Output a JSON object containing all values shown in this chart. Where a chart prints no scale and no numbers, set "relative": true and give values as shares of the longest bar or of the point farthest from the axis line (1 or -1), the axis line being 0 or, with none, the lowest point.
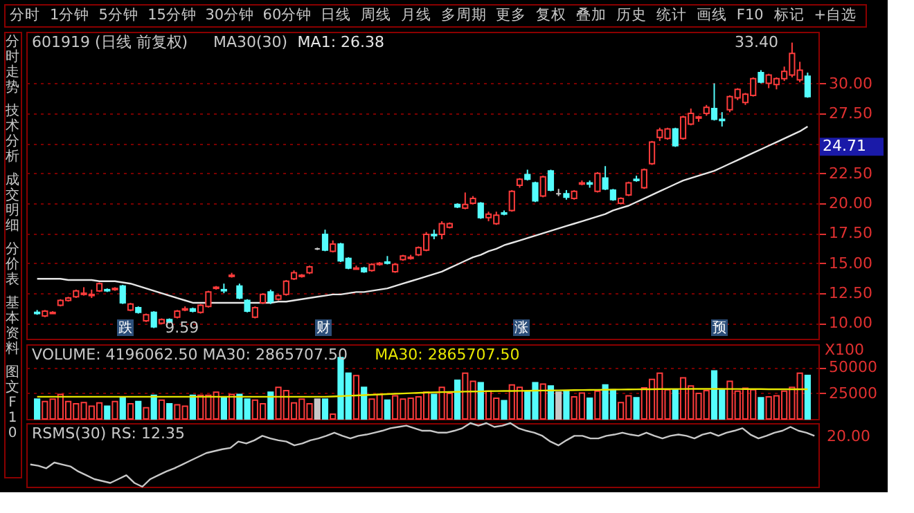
{
  "chart_data": [
    {
      "type": "candlestick",
      "title": "601919 (日线 前复权)",
      "subtitle": "MA30(30)",
      "categories": [
        null,
        null,
        null,
        null,
        null,
        null,
        null,
        null,
        null,
        null,
        null,
        null,
        null,
        null,
        null,
        null,
        null,
        null,
        null,
        null,
        null,
        null,
        null,
        null,
        null,
        null,
        null,
        null,
        null,
        null,
        null,
        null,
        null,
        null,
        null,
        null,
        null,
        null,
        null,
        null,
        null,
        null,
        null,
        null,
        null,
        null,
        null,
        null,
        null,
        null,
        null,
        null,
        null,
        null,
        null,
        null,
        null,
        null,
        null,
        null,
        null,
        null,
        null,
        null,
        null,
        null,
        null,
        null,
        null,
        null,
        null,
        null,
        null,
        null,
        null,
        null,
        null,
        null,
        null,
        null,
        null,
        null,
        null,
        null,
        null,
        null,
        null,
        null,
        null,
        null,
        null,
        null,
        null,
        null,
        null,
        null,
        null,
        null,
        null,
        null
      ],
      "ohlc": [
        [
          10.9,
          11.1,
          10.7,
          10.8
        ],
        [
          10.6,
          11.1,
          10.5,
          11.0
        ],
        [
          10.8,
          11.0,
          10.8,
          10.9
        ],
        [
          11.5,
          12.0,
          11.4,
          11.9
        ],
        [
          11.9,
          12.2,
          11.8,
          12.1
        ],
        [
          12.2,
          12.8,
          12.1,
          12.7
        ],
        [
          12.4,
          13.0,
          12.3,
          12.5
        ],
        [
          12.3,
          12.8,
          12.1,
          12.4
        ],
        [
          12.7,
          13.4,
          12.6,
          13.3
        ],
        [
          12.8,
          12.9,
          12.6,
          12.7
        ],
        [
          12.8,
          13.0,
          12.7,
          12.9
        ],
        [
          13.1,
          13.2,
          11.6,
          11.7
        ],
        [
          11.1,
          11.7,
          11.0,
          11.6
        ],
        [
          11.3,
          11.4,
          10.8,
          10.9
        ],
        [
          10.2,
          10.8,
          10.1,
          10.7
        ],
        [
          10.9,
          11.0,
          9.59,
          9.7
        ],
        [
          10.0,
          10.4,
          9.9,
          10.3
        ],
        [
          10.3,
          10.4,
          10.0,
          10.1
        ],
        [
          10.5,
          11.1,
          10.4,
          11.0
        ],
        [
          11.1,
          11.4,
          11.0,
          11.2
        ],
        [
          11.2,
          11.3,
          10.9,
          11.0
        ],
        [
          10.9,
          11.6,
          10.8,
          11.5
        ],
        [
          11.4,
          12.7,
          11.3,
          12.6
        ],
        [
          12.9,
          13.1,
          12.8,
          13.0
        ],
        [
          12.8,
          13.3,
          12.5,
          12.7
        ],
        [
          13.9,
          14.2,
          13.8,
          14.0
        ],
        [
          13.1,
          13.3,
          12.0,
          12.1
        ],
        [
          11.9,
          12.0,
          10.9,
          11.0
        ],
        [
          10.5,
          11.4,
          10.4,
          11.3
        ],
        [
          11.7,
          12.5,
          11.6,
          12.4
        ],
        [
          12.6,
          12.8,
          11.6,
          11.8
        ],
        [
          12.0,
          12.4,
          11.9,
          12.3
        ],
        [
          12.4,
          13.6,
          12.3,
          13.5
        ],
        [
          13.7,
          14.4,
          13.6,
          14.2
        ],
        [
          13.9,
          14.1,
          13.8,
          14.0
        ],
        [
          14.2,
          14.8,
          14.1,
          14.7
        ],
        [
          16.2,
          16.3,
          16.1,
          16.2
        ],
        [
          17.4,
          17.8,
          16.0,
          16.1
        ],
        [
          16.0,
          16.9,
          15.9,
          16.6
        ],
        [
          16.6,
          16.7,
          15.1,
          15.2
        ],
        [
          15.4,
          15.5,
          14.5,
          14.6
        ],
        [
          14.5,
          14.8,
          14.5,
          14.6
        ],
        [
          14.6,
          14.7,
          14.2,
          14.3
        ],
        [
          14.4,
          15.0,
          14.3,
          14.9
        ],
        [
          14.9,
          15.1,
          14.8,
          15.0
        ],
        [
          15.1,
          15.6,
          14.9,
          15.0
        ],
        [
          14.3,
          15.0,
          14.2,
          14.9
        ],
        [
          15.3,
          15.7,
          15.2,
          15.6
        ],
        [
          15.4,
          15.7,
          15.3,
          15.5
        ],
        [
          15.7,
          16.4,
          15.6,
          16.3
        ],
        [
          16.1,
          17.6,
          16.0,
          17.4
        ],
        [
          17.4,
          17.8,
          17.0,
          17.3
        ],
        [
          17.4,
          18.5,
          17.0,
          18.3
        ],
        [
          18.0,
          18.4,
          17.9,
          18.3
        ],
        [
          19.9,
          20.0,
          19.6,
          19.7
        ],
        [
          19.6,
          20.9,
          19.5,
          19.9
        ],
        [
          20.0,
          20.6,
          19.9,
          20.4
        ],
        [
          20.0,
          20.1,
          18.7,
          18.8
        ],
        [
          18.8,
          19.3,
          18.5,
          19.1
        ],
        [
          18.3,
          19.3,
          18.2,
          19.0
        ],
        [
          19.2,
          19.4,
          19.0,
          19.1
        ],
        [
          19.4,
          21.1,
          19.3,
          21.0
        ],
        [
          21.5,
          22.1,
          21.3,
          22.0
        ],
        [
          22.4,
          22.8,
          21.9,
          22.0
        ],
        [
          21.7,
          21.8,
          20.1,
          20.2
        ],
        [
          20.6,
          22.3,
          20.5,
          22.2
        ],
        [
          22.7,
          22.8,
          21.0,
          21.1
        ],
        [
          20.8,
          21.2,
          20.6,
          20.8
        ],
        [
          20.8,
          21.1,
          20.3,
          20.5
        ],
        [
          20.4,
          21.1,
          20.3,
          21.0
        ],
        [
          21.6,
          21.9,
          21.5,
          21.7
        ],
        [
          21.7,
          21.9,
          21.3,
          21.6
        ],
        [
          21.0,
          22.6,
          20.9,
          22.5
        ],
        [
          22.1,
          23.1,
          21.1,
          21.2
        ],
        [
          21.1,
          21.2,
          20.2,
          20.3
        ],
        [
          20.0,
          20.5,
          19.9,
          20.4
        ],
        [
          20.7,
          21.8,
          20.6,
          21.7
        ],
        [
          22.0,
          22.3,
          21.8,
          21.9
        ],
        [
          21.3,
          22.9,
          21.2,
          22.8
        ],
        [
          23.3,
          25.2,
          23.2,
          25.1
        ],
        [
          25.5,
          26.3,
          25.2,
          26.1
        ],
        [
          25.4,
          26.3,
          25.3,
          26.2
        ],
        [
          26.2,
          26.3,
          24.7,
          24.8
        ],
        [
          25.4,
          27.3,
          25.3,
          27.2
        ],
        [
          26.6,
          27.9,
          26.5,
          27.5
        ],
        [
          27.1,
          27.3,
          26.8,
          27.2
        ],
        [
          27.5,
          28.2,
          27.3,
          28.0
        ],
        [
          27.9,
          30.0,
          26.9,
          27.0
        ],
        [
          27.0,
          27.6,
          26.4,
          26.9
        ],
        [
          27.8,
          29.0,
          27.6,
          28.9
        ],
        [
          28.8,
          29.6,
          28.6,
          29.5
        ],
        [
          28.4,
          29.2,
          28.2,
          29.1
        ],
        [
          29.0,
          30.5,
          28.9,
          30.4
        ],
        [
          30.9,
          31.1,
          30.0,
          30.1
        ],
        [
          30.0,
          30.8,
          29.6,
          30.7
        ],
        [
          29.9,
          30.5,
          29.5,
          30.4
        ],
        [
          30.4,
          31.4,
          30.2,
          31.0
        ],
        [
          30.7,
          33.4,
          30.5,
          32.5
        ],
        [
          30.3,
          31.8,
          30.1,
          31.1
        ],
        [
          30.6,
          30.9,
          28.8,
          28.9
        ]
      ],
      "colors": [
        "#54fcfc",
        "#ff3c3c",
        "#ff3c3c",
        "#ff3c3c",
        "#ff3c3c",
        "#ff3c3c",
        "#ff3c3c",
        "#ff3c3c",
        "#ff3c3c",
        "#54fcfc",
        "#ff3c3c",
        "#54fcfc",
        "#ff3c3c",
        "#54fcfc",
        "#ff3c3c",
        "#54fcfc",
        "#ff3c3c",
        "#54fcfc",
        "#ff3c3c",
        "#ff3c3c",
        "#54fcfc",
        "#ff3c3c",
        "#ff3c3c",
        "#ff3c3c",
        "#54fcfc",
        "#ff3c3c",
        "#54fcfc",
        "#54fcfc",
        "#ff3c3c",
        "#ff3c3c",
        "#54fcfc",
        "#ff3c3c",
        "#ff3c3c",
        "#ff3c3c",
        "#ff3c3c",
        "#ff3c3c",
        "#c8c8c8",
        "#54fcfc",
        "#ff3c3c",
        "#54fcfc",
        "#54fcfc",
        "#ff3c3c",
        "#54fcfc",
        "#ff3c3c",
        "#ff3c3c",
        "#54fcfc",
        "#ff3c3c",
        "#ff3c3c",
        "#ff3c3c",
        "#ff3c3c",
        "#ff3c3c",
        "#54fcfc",
        "#ff3c3c",
        "#ff3c3c",
        "#54fcfc",
        "#ff3c3c",
        "#ff3c3c",
        "#54fcfc",
        "#ff3c3c",
        "#ff3c3c",
        "#54fcfc",
        "#ff3c3c",
        "#ff3c3c",
        "#54fcfc",
        "#54fcfc",
        "#ff3c3c",
        "#54fcfc",
        "#c8c8c8",
        "#54fcfc",
        "#ff3c3c",
        "#ff3c3c",
        "#54fcfc",
        "#ff3c3c",
        "#54fcfc",
        "#54fcfc",
        "#ff3c3c",
        "#ff3c3c",
        "#54fcfc",
        "#ff3c3c",
        "#ff3c3c",
        "#ff3c3c",
        "#ff3c3c",
        "#54fcfc",
        "#ff3c3c",
        "#ff3c3c",
        "#ff3c3c",
        "#ff3c3c",
        "#54fcfc",
        "#54fcfc",
        "#ff3c3c",
        "#ff3c3c",
        "#ff3c3c",
        "#ff3c3c",
        "#54fcfc",
        "#ff3c3c",
        "#ff3c3c",
        "#ff3c3c",
        "#ff3c3c",
        "#ff3c3c",
        "#54fcfc"
      ],
      "series": [
        {
          "type": "line",
          "name": "MA1: 26.38",
          "color": "#e6e6e6",
          "values": [
            13.7,
            13.7,
            13.7,
            13.7,
            13.6,
            13.6,
            13.6,
            13.6,
            13.5,
            13.5,
            13.5,
            13.4,
            13.3,
            13.1,
            12.9,
            12.7,
            12.5,
            12.3,
            12.1,
            11.9,
            11.7,
            11.7,
            11.7,
            11.7,
            11.7,
            11.7,
            11.7,
            11.7,
            11.7,
            11.7,
            11.7,
            11.8,
            11.8,
            11.9,
            12.0,
            12.1,
            12.2,
            12.3,
            12.4,
            12.4,
            12.5,
            12.6,
            12.6,
            12.7,
            12.8,
            12.9,
            13.1,
            13.3,
            13.5,
            13.7,
            13.9,
            14.1,
            14.3,
            14.6,
            14.9,
            15.2,
            15.5,
            15.7,
            16.0,
            16.2,
            16.5,
            16.7,
            16.9,
            17.1,
            17.3,
            17.5,
            17.7,
            17.9,
            18.1,
            18.3,
            18.5,
            18.7,
            18.9,
            19.1,
            19.4,
            19.6,
            19.8,
            20.1,
            20.4,
            20.7,
            21.0,
            21.3,
            21.6,
            21.9,
            22.1,
            22.3,
            22.5,
            22.7,
            23.0,
            23.3,
            23.6,
            23.9,
            24.2,
            24.5,
            24.8,
            25.1,
            25.4,
            25.7,
            26.0,
            26.4
          ]
        }
      ],
      "ylim": [
        8.7,
        34.3
      ],
      "yticks": [
        {
          "value": 10,
          "label": "10.00"
        },
        {
          "value": 12.5,
          "label": "12.50"
        },
        {
          "value": 15,
          "label": "15.00"
        },
        {
          "value": 17.5,
          "label": "17.50"
        },
        {
          "value": 20,
          "label": "20.00"
        },
        {
          "value": 22.5,
          "label": "22.50"
        },
        {
          "value": 25,
          "label": null
        },
        {
          "value": 27.5,
          "label": "27.50"
        },
        {
          "value": 30,
          "label": "30.00"
        }
      ],
      "grid": "y",
      "annotations": [
        "33.40",
        "9.59",
        "24.71",
        "跌",
        "财",
        "涨",
        "预"
      ]
    },
    {
      "type": "bar",
      "title": "VOLUME: 4196062.50  MA30: 2865707.50",
      "categories": [
        null,
        null,
        null,
        null,
        null,
        null,
        null,
        null,
        null,
        null,
        null,
        null,
        null,
        null,
        null,
        null,
        null,
        null,
        null,
        null,
        null,
        null,
        null,
        null,
        null,
        null,
        null,
        null,
        null,
        null,
        null,
        null,
        null,
        null,
        null,
        null,
        null,
        null,
        null,
        null,
        null,
        null,
        null,
        null,
        null,
        null,
        null,
        null,
        null,
        null,
        null,
        null,
        null,
        null,
        null,
        null,
        null,
        null,
        null,
        null,
        null,
        null,
        null,
        null,
        null,
        null,
        null,
        null,
        null,
        null,
        null,
        null,
        null,
        null,
        null,
        null,
        null,
        null,
        null,
        null,
        null,
        null,
        null,
        null,
        null,
        null,
        null,
        null,
        null,
        null,
        null,
        null,
        null,
        null,
        null,
        null,
        null,
        null,
        null,
        null
      ],
      "values": [
        19100,
        16800,
        19100,
        23700,
        16800,
        14600,
        15900,
        12300,
        15500,
        12300,
        16800,
        20000,
        14600,
        16800,
        10900,
        22800,
        18200,
        14600,
        13700,
        12300,
        22800,
        22800,
        22800,
        25900,
        20000,
        23700,
        23700,
        19100,
        18200,
        14600,
        25900,
        30500,
        27300,
        15500,
        19100,
        14600,
        19100,
        19100,
        4600,
        59200,
        44100,
        41900,
        30500,
        19100,
        23700,
        18200,
        22300,
        19100,
        20000,
        21400,
        25900,
        23700,
        30500,
        24600,
        37300,
        44100,
        36400,
        35000,
        26800,
        20000,
        17700,
        32800,
        30500,
        26800,
        35000,
        33700,
        31900,
        25900,
        26800,
        21400,
        25000,
        20000,
        26800,
        32800,
        28200,
        15900,
        22300,
        20500,
        30000,
        38200,
        44100,
        28200,
        28200,
        39600,
        31900,
        24600,
        27300,
        46400,
        28200,
        36400,
        26800,
        29600,
        28200,
        20500,
        21400,
        22300,
        26800,
        30500,
        44100,
        41960.625
      ],
      "colors": [
        "#54fcfc",
        "#ff3c3c",
        "#ff3c3c",
        "#ff3c3c",
        "#ff3c3c",
        "#ff3c3c",
        "#ff3c3c",
        "#ff3c3c",
        "#ff3c3c",
        "#54fcfc",
        "#ff3c3c",
        "#54fcfc",
        "#ff3c3c",
        "#54fcfc",
        "#ff3c3c",
        "#54fcfc",
        "#ff3c3c",
        "#54fcfc",
        "#ff3c3c",
        "#ff3c3c",
        "#54fcfc",
        "#ff3c3c",
        "#ff3c3c",
        "#ff3c3c",
        "#54fcfc",
        "#ff3c3c",
        "#54fcfc",
        "#54fcfc",
        "#ff3c3c",
        "#ff3c3c",
        "#54fcfc",
        "#ff3c3c",
        "#ff3c3c",
        "#ff3c3c",
        "#ff3c3c",
        "#ff3c3c",
        "#c8c8c8",
        "#54fcfc",
        "#ff3c3c",
        "#54fcfc",
        "#54fcfc",
        "#ff3c3c",
        "#54fcfc",
        "#ff3c3c",
        "#ff3c3c",
        "#54fcfc",
        "#ff3c3c",
        "#ff3c3c",
        "#ff3c3c",
        "#ff3c3c",
        "#ff3c3c",
        "#54fcfc",
        "#ff3c3c",
        "#ff3c3c",
        "#54fcfc",
        "#ff3c3c",
        "#ff3c3c",
        "#54fcfc",
        "#ff3c3c",
        "#ff3c3c",
        "#54fcfc",
        "#ff3c3c",
        "#ff3c3c",
        "#54fcfc",
        "#54fcfc",
        "#ff3c3c",
        "#54fcfc",
        "#c8c8c8",
        "#54fcfc",
        "#ff3c3c",
        "#ff3c3c",
        "#54fcfc",
        "#ff3c3c",
        "#54fcfc",
        "#54fcfc",
        "#ff3c3c",
        "#ff3c3c",
        "#54fcfc",
        "#ff3c3c",
        "#ff3c3c",
        "#ff3c3c",
        "#ff3c3c",
        "#54fcfc",
        "#ff3c3c",
        "#ff3c3c",
        "#ff3c3c",
        "#ff3c3c",
        "#54fcfc",
        "#54fcfc",
        "#ff3c3c",
        "#ff3c3c",
        "#ff3c3c",
        "#ff3c3c",
        "#54fcfc",
        "#ff3c3c",
        "#ff3c3c",
        "#ff3c3c",
        "#ff3c3c",
        "#ff3c3c",
        "#54fcfc"
      ],
      "series": [
        {
          "type": "line",
          "name": "MA30: 2865707.50",
          "color": "#e6e600",
          "values": [
            21400,
            21400,
            21400,
            21400,
            21400,
            21400,
            21400,
            21400,
            21400,
            21400,
            21400,
            21400,
            21400,
            21400,
            21400,
            21400,
            21400,
            21400,
            21400,
            21400,
            21400,
            21400,
            21400,
            21400,
            21400,
            21400,
            21400,
            21400,
            21400,
            21400,
            21400,
            21400,
            21400,
            21400,
            21400,
            21400,
            21400,
            21400,
            21700,
            22000,
            22400,
            22700,
            23000,
            23300,
            23700,
            24000,
            24300,
            24600,
            24900,
            25200,
            25500,
            25700,
            25900,
            26000,
            26200,
            26400,
            26500,
            26600,
            26800,
            26900,
            27000,
            27000,
            27100,
            27200,
            27300,
            27400,
            27500,
            27600,
            27700,
            27800,
            27900,
            28000,
            28100,
            28200,
            28300,
            28400,
            28500,
            28600,
            28700,
            28700,
            28800,
            28800,
            28900,
            28900,
            29000,
            29000,
            29000,
            29000,
            29000,
            28900,
            28900,
            28800,
            28800,
            28800,
            28700,
            28700,
            28700,
            28700,
            28700,
            28657.075
          ]
        }
      ],
      "ylim": [
        0,
        72000
      ],
      "yticks": [
        25000,
        50000
      ],
      "ylabel": "X100",
      "grid": "y"
    },
    {
      "type": "line",
      "title": "RSMS(30)  RS: 12.35",
      "relative": true,
      "categories": [
        null,
        null,
        null,
        null,
        null,
        null,
        null,
        null,
        null,
        null,
        null,
        null,
        null,
        null,
        null,
        null,
        null,
        null,
        null,
        null,
        null,
        null,
        null,
        null,
        null,
        null,
        null,
        null,
        null,
        null,
        null,
        null,
        null,
        null,
        null,
        null,
        null,
        null,
        null,
        null,
        null,
        null,
        null,
        null,
        null,
        null,
        null,
        null,
        null,
        null,
        null,
        null,
        null,
        null,
        null,
        null,
        null,
        null,
        null,
        null,
        null,
        null,
        null,
        null,
        null,
        null,
        null,
        null,
        null,
        null,
        null,
        null,
        null,
        null,
        null,
        null,
        null,
        null,
        null,
        null,
        null,
        null,
        null,
        null,
        null,
        null,
        null,
        null,
        null,
        null,
        null,
        null,
        null,
        null,
        null,
        null,
        null,
        null,
        null
      ],
      "series": [
        {
          "color": "#c8c8c8",
          "values": [
            0.35,
            0.33,
            0.29,
            0.38,
            0.35,
            0.32,
            0.24,
            0.18,
            0.12,
            0.09,
            0.06,
            0.12,
            0.18,
            0.06,
            0,
            0.12,
            0.18,
            0.24,
            0.29,
            0.35,
            0.41,
            0.47,
            0.53,
            0.56,
            0.59,
            0.61,
            0.71,
            0.68,
            0.73,
            0.8,
            0.76,
            0.73,
            0.71,
            0.65,
            0.68,
            0.73,
            0.76,
            0.8,
            0.85,
            0.8,
            0.76,
            0.8,
            0.82,
            0.85,
            0.88,
            0.92,
            0.94,
            0.96,
            0.92,
            0.88,
            0.88,
            0.85,
            0.85,
            0.88,
            0.92,
            1,
            0.96,
            1,
            0.94,
            0.96,
            1,
            0.92,
            0.88,
            0.85,
            0.8,
            0.71,
            0.65,
            0.73,
            0.8,
            0.8,
            0.76,
            0.76,
            0.8,
            0.82,
            0.85,
            0.82,
            0.8,
            0.85,
            0.8,
            0.76,
            0.8,
            0.82,
            0.8,
            0.76,
            0.82,
            0.85,
            0.8,
            0.85,
            0.88,
            0.92,
            0.82,
            0.76,
            0.8,
            0.85,
            0.88,
            0.94,
            0.88,
            0.85,
            0.8
          ]
        }
      ],
      "annotations": [
        "20.00"
      ]
    },
    {
      "type": "other",
      "annotations": [
        "分时",
        "1分钟",
        "5分钟",
        "15分钟",
        "30分钟",
        "60分钟",
        "日线",
        "周线",
        "月线",
        "多周期",
        "更多",
        "复权",
        "叠加",
        "历史",
        "统计",
        "画线",
        "F10",
        "标记",
        "+自选"
      ]
    },
    {
      "type": "other",
      "annotations": [
        "分时走势",
        "技术分析",
        "成交明细",
        "分价表",
        "基本资料",
        "图文F10"
      ]
    }
  ]
}
